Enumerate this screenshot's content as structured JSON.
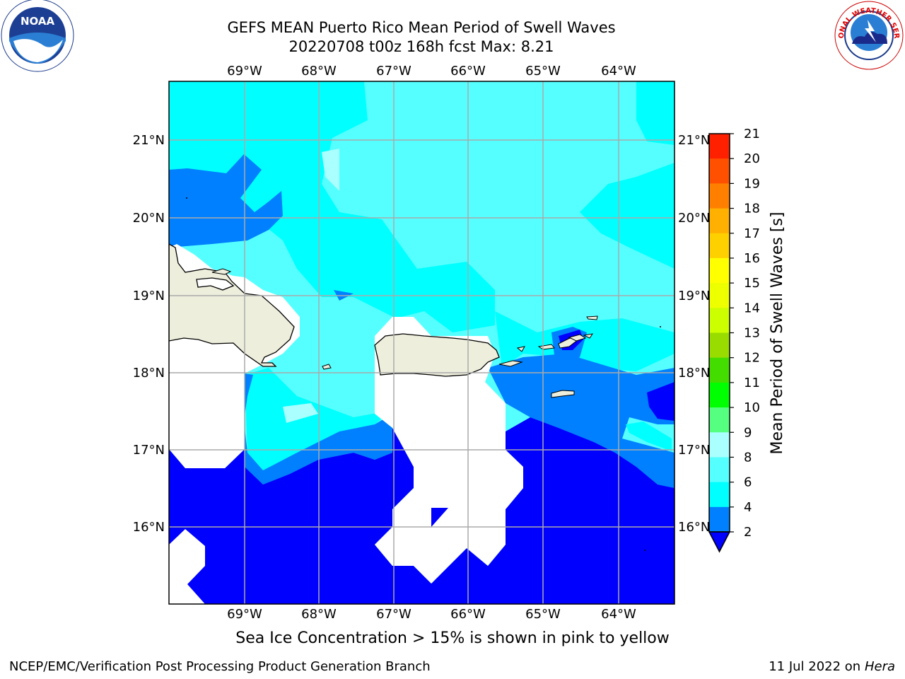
{
  "title_line1": "GEFS MEAN Puerto Rico Mean Period of Swell Waves",
  "title_line2": "20220708 t00z 168h fcst   Max: 8.21",
  "lon_labels": [
    "69°W",
    "68°W",
    "67°W",
    "66°W",
    "65°W",
    "64°W"
  ],
  "lat_labels": [
    "21°N",
    "20°N",
    "19°N",
    "18°N",
    "17°N",
    "16°N"
  ],
  "colorbar": {
    "label": "Mean Period of Swell Waves [s]",
    "ticks": [
      "21",
      "20",
      "19",
      "18",
      "17",
      "16",
      "15",
      "14",
      "13",
      "12",
      "11",
      "10",
      "9",
      "8",
      "6",
      "4",
      "2"
    ],
    "colors": [
      "#0000ff",
      "#0080ff",
      "#00ffff",
      "#55ffff",
      "#aaffff",
      "#55ff80",
      "#00ff00",
      "#44dd00",
      "#99dd00",
      "#ccff00",
      "#eeff00",
      "#ffff00",
      "#ffd000",
      "#ffb000",
      "#ff8000",
      "#ff5000",
      "#ff2000",
      "#ff0000"
    ]
  },
  "ice_note": "Sea Ice Concentration > 15% is shown in pink to yellow",
  "footer_left": "NCEP/EMC/Verification Post Processing Product Generation Branch",
  "footer_date": "11 Jul 2022 on ",
  "footer_machine": "Hera",
  "logos": {
    "noaa_text": "NOAA",
    "nws_text": "NATIONAL WEATHER SERVICE"
  }
}
